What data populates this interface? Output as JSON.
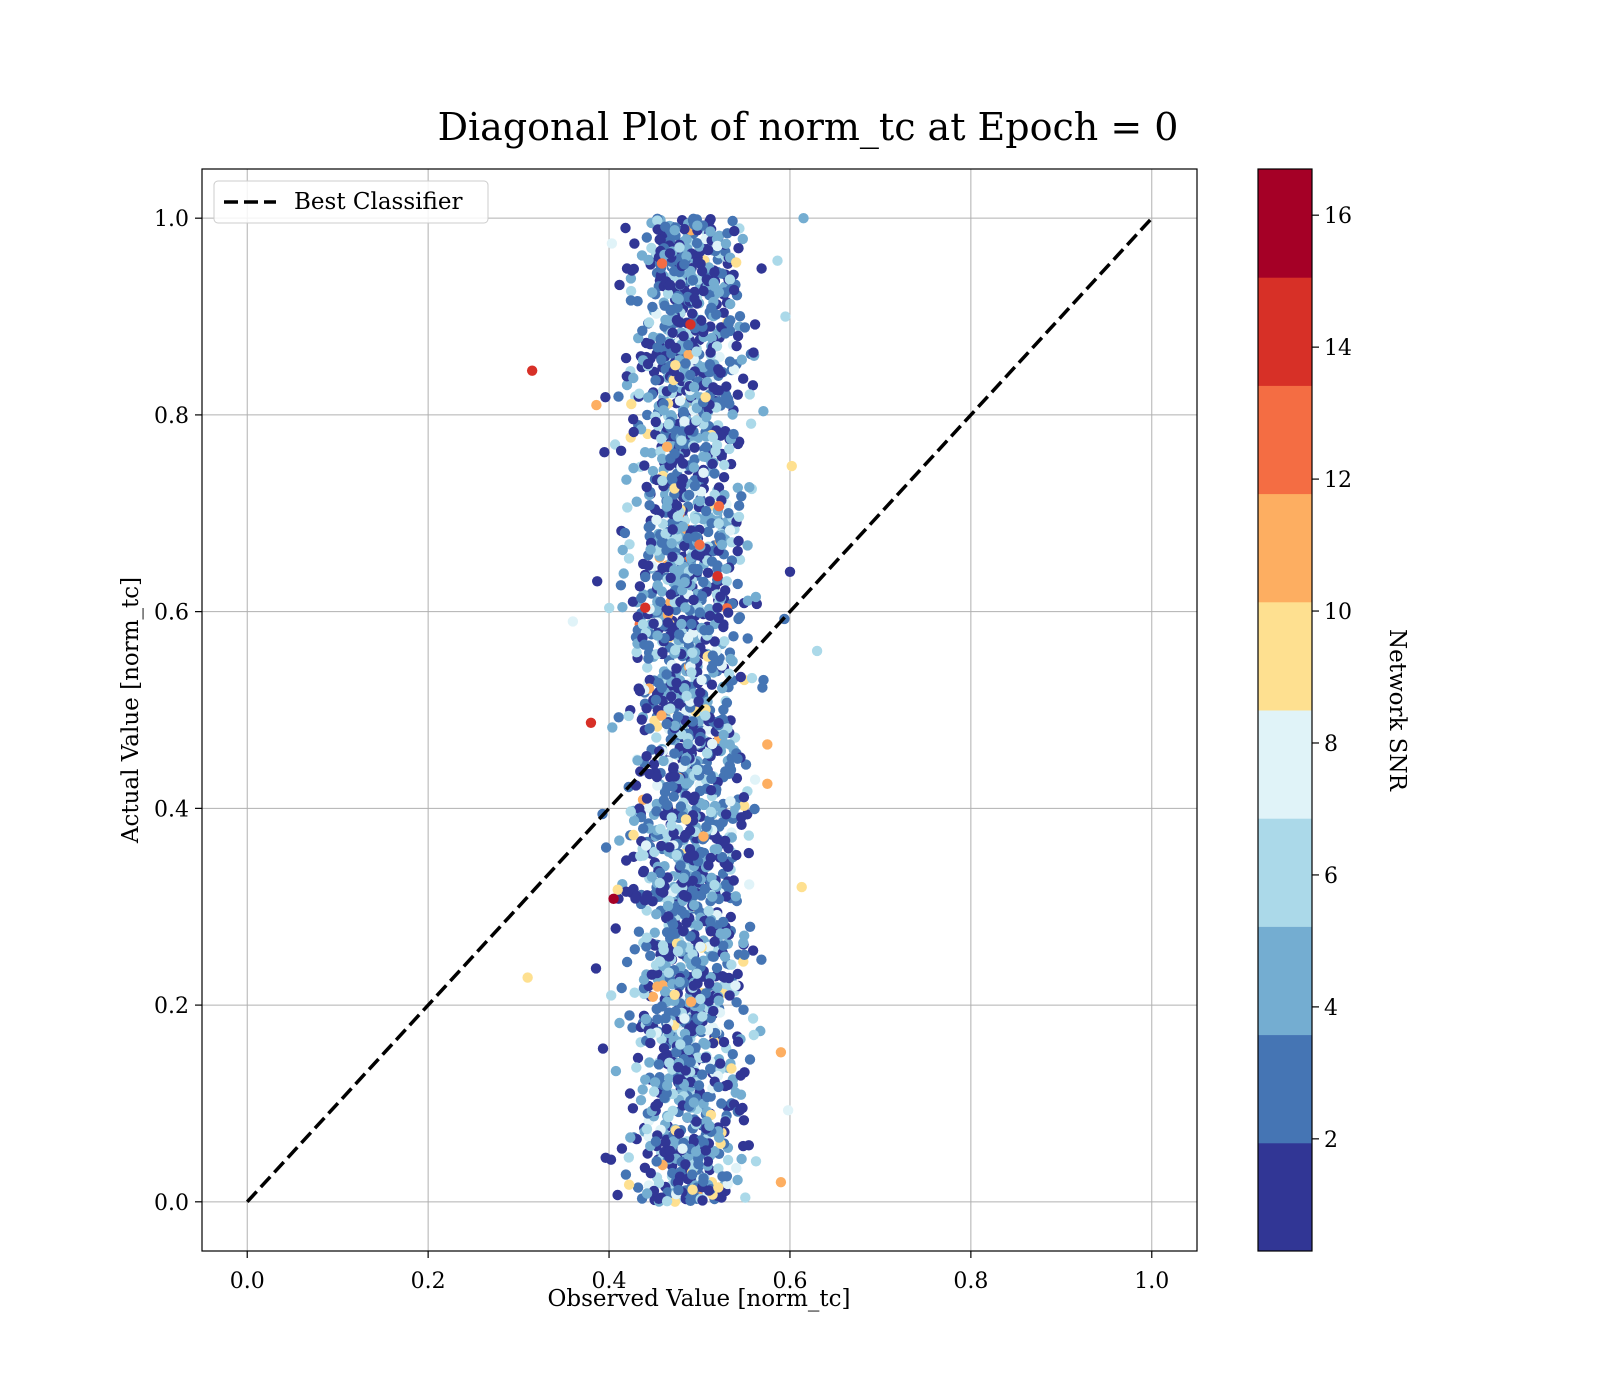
{
  "chart_data": {
    "type": "scatter",
    "title": "Diagonal Plot of norm_tc at Epoch = 0",
    "xlabel": "Observed Value [norm_tc]",
    "ylabel": "Actual Value [norm_tc]",
    "xlim": [
      -0.05,
      1.05
    ],
    "ylim": [
      -0.05,
      1.05
    ],
    "xticks": [
      "0.0",
      "0.2",
      "0.4",
      "0.6",
      "0.8",
      "1.0"
    ],
    "yticks": [
      "0.0",
      "0.2",
      "0.4",
      "0.6",
      "0.8",
      "1.0"
    ],
    "grid": true,
    "legend": {
      "placement": "top-left",
      "entries": [
        "Best Classifier"
      ]
    },
    "reference_line": {
      "name": "Best Classifier",
      "x": [
        0,
        1
      ],
      "y": [
        0,
        1
      ],
      "style": "dashed",
      "color": "#000000"
    },
    "colorbar": {
      "label": "Network SNR",
      "ticks": [
        "2",
        "4",
        "6",
        "8",
        "10",
        "12",
        "14",
        "16"
      ],
      "tick_values": [
        2,
        4,
        6,
        8,
        10,
        12,
        14,
        16
      ],
      "range": [
        0.3,
        16.7
      ],
      "colormap": "RdYlBu_r (discrete, 10 bins)",
      "colors": [
        "#313695",
        "#4575b4",
        "#74add1",
        "#abd9e9",
        "#e0f3f8",
        "#fee090",
        "#fdae61",
        "#f46d43",
        "#d73027",
        "#a50026"
      ]
    },
    "scatter_summary": {
      "description_points": "approx. 3000 points; observed x concentrated between 0.40 and 0.56, actual y spread over 0.0 to 1.0",
      "outliers": [
        {
          "x": 0.315,
          "y": 0.845,
          "snr": 14.5
        },
        {
          "x": 0.386,
          "y": 0.81,
          "snr": 11
        },
        {
          "x": 0.36,
          "y": 0.59,
          "snr": 8
        },
        {
          "x": 0.38,
          "y": 0.487,
          "snr": 14.5
        },
        {
          "x": 0.405,
          "y": 0.308,
          "snr": 16
        },
        {
          "x": 0.31,
          "y": 0.228,
          "snr": 9
        },
        {
          "x": 0.615,
          "y": 1.0,
          "snr": 4
        },
        {
          "x": 0.63,
          "y": 0.56,
          "snr": 6
        },
        {
          "x": 0.613,
          "y": 0.32,
          "snr": 9
        },
        {
          "x": 0.59,
          "y": 0.152,
          "snr": 11
        },
        {
          "x": 0.59,
          "y": 0.02,
          "snr": 11
        },
        {
          "x": 0.598,
          "y": 0.093,
          "snr": 8
        },
        {
          "x": 0.602,
          "y": 0.748,
          "snr": 9
        },
        {
          "x": 0.595,
          "y": 0.9,
          "snr": 6
        },
        {
          "x": 0.49,
          "y": 0.892,
          "snr": 14.5
        },
        {
          "x": 0.5,
          "y": 0.668,
          "snr": 13
        },
        {
          "x": 0.52,
          "y": 0.636,
          "snr": 14.5
        },
        {
          "x": 0.44,
          "y": 0.604,
          "snr": 14.5
        },
        {
          "x": 0.575,
          "y": 0.425,
          "snr": 11
        },
        {
          "x": 0.575,
          "y": 0.465,
          "snr": 11
        }
      ]
    }
  }
}
